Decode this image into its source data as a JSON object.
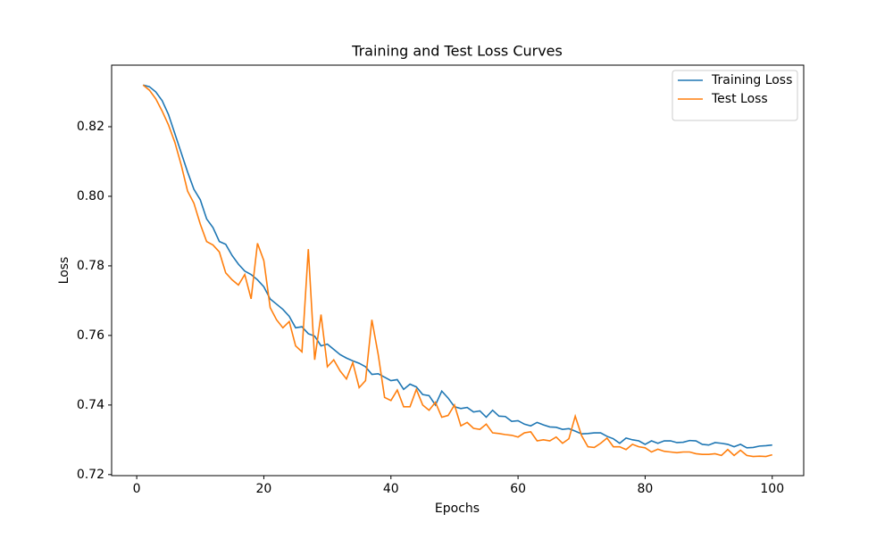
{
  "chart_data": {
    "type": "line",
    "title": "Training and Test Loss Curves",
    "xlabel": "Epochs",
    "ylabel": "Loss",
    "x": [
      1,
      2,
      3,
      4,
      5,
      6,
      7,
      8,
      9,
      10,
      11,
      12,
      13,
      14,
      15,
      16,
      17,
      18,
      19,
      20,
      21,
      22,
      23,
      24,
      25,
      26,
      27,
      28,
      29,
      30,
      31,
      32,
      33,
      34,
      35,
      36,
      37,
      38,
      39,
      40,
      41,
      42,
      43,
      44,
      45,
      46,
      47,
      48,
      49,
      50,
      51,
      52,
      53,
      54,
      55,
      56,
      57,
      58,
      59,
      60,
      61,
      62,
      63,
      64,
      65,
      66,
      67,
      68,
      69,
      70,
      71,
      72,
      73,
      74,
      75,
      76,
      77,
      78,
      79,
      80,
      81,
      82,
      83,
      84,
      85,
      86,
      87,
      88,
      89,
      90,
      91,
      92,
      93,
      94,
      95,
      96,
      97,
      98,
      99,
      100
    ],
    "series": [
      {
        "name": "Training Loss",
        "color": "#1f77b4",
        "values": [
          0.832,
          0.8315,
          0.83,
          0.8275,
          0.8235,
          0.818,
          0.8125,
          0.807,
          0.802,
          0.799,
          0.7935,
          0.791,
          0.787,
          0.7862,
          0.783,
          0.7805,
          0.7785,
          0.7775,
          0.776,
          0.774,
          0.7705,
          0.769,
          0.7675,
          0.7655,
          0.7622,
          0.7625,
          0.7605,
          0.7598,
          0.757,
          0.7575,
          0.756,
          0.7545,
          0.7535,
          0.7527,
          0.752,
          0.751,
          0.7488,
          0.749,
          0.748,
          0.747,
          0.7473,
          0.7445,
          0.746,
          0.7452,
          0.743,
          0.7427,
          0.74,
          0.744,
          0.742,
          0.7395,
          0.739,
          0.7393,
          0.738,
          0.7383,
          0.7365,
          0.7385,
          0.7368,
          0.7367,
          0.7353,
          0.7355,
          0.7345,
          0.734,
          0.735,
          0.7343,
          0.7337,
          0.7336,
          0.733,
          0.7332,
          0.7325,
          0.7317,
          0.7318,
          0.732,
          0.732,
          0.731,
          0.7303,
          0.729,
          0.7305,
          0.73,
          0.7297,
          0.7287,
          0.7297,
          0.729,
          0.7297,
          0.7297,
          0.7292,
          0.7293,
          0.7298,
          0.7297,
          0.7287,
          0.7285,
          0.7292,
          0.729,
          0.7287,
          0.728,
          0.7287,
          0.7277,
          0.7278,
          0.7282,
          0.7283,
          0.7285
        ]
      },
      {
        "name": "Test Loss",
        "color": "#ff7f0e",
        "values": [
          0.832,
          0.8305,
          0.828,
          0.8245,
          0.8205,
          0.8155,
          0.809,
          0.8015,
          0.798,
          0.792,
          0.787,
          0.786,
          0.784,
          0.778,
          0.776,
          0.7745,
          0.7775,
          0.7705,
          0.7865,
          0.7815,
          0.768,
          0.7645,
          0.7622,
          0.764,
          0.757,
          0.7553,
          0.7848,
          0.753,
          0.766,
          0.751,
          0.753,
          0.7498,
          0.7475,
          0.7522,
          0.745,
          0.747,
          0.7645,
          0.7545,
          0.7422,
          0.7413,
          0.7443,
          0.7395,
          0.7395,
          0.7445,
          0.74,
          0.7385,
          0.7408,
          0.7365,
          0.737,
          0.74,
          0.734,
          0.735,
          0.7333,
          0.733,
          0.7345,
          0.732,
          0.7318,
          0.7315,
          0.7313,
          0.7308,
          0.732,
          0.7323,
          0.7297,
          0.73,
          0.7297,
          0.7308,
          0.729,
          0.7303,
          0.7368,
          0.7312,
          0.728,
          0.7278,
          0.729,
          0.7305,
          0.728,
          0.728,
          0.7272,
          0.7287,
          0.728,
          0.7277,
          0.7265,
          0.7273,
          0.7267,
          0.7265,
          0.7263,
          0.7265,
          0.7265,
          0.726,
          0.7258,
          0.7258,
          0.726,
          0.7255,
          0.7272,
          0.7255,
          0.727,
          0.7255,
          0.7252,
          0.7253,
          0.7252,
          0.7257
        ]
      }
    ],
    "xlim": [
      -3.95,
      104.95
    ],
    "xticks": [
      0,
      20,
      40,
      60,
      80,
      100
    ],
    "ylim": [
      0.7197,
      0.8377
    ],
    "yticks": [
      0.72,
      0.74,
      0.76,
      0.78,
      {
        "value": 0.8,
        "label": "0.80"
      },
      0.82
    ],
    "legend": "upper right"
  }
}
